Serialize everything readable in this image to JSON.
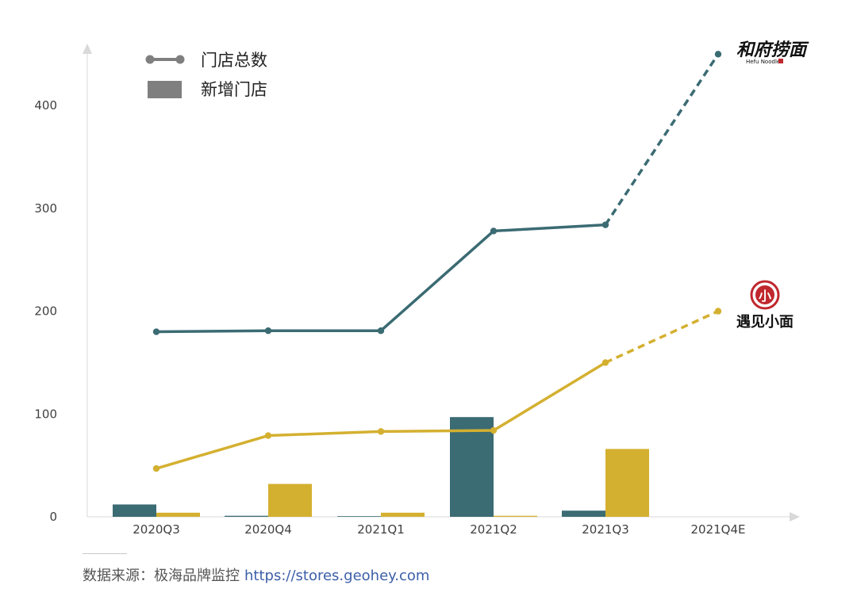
{
  "chart_data": {
    "type": "bar+line",
    "title": "",
    "xlabel": "",
    "ylabel": "",
    "ylim": [
      0,
      460
    ],
    "yticks": [
      0,
      100,
      200,
      300,
      400
    ],
    "categories": [
      "2020Q3",
      "2020Q4",
      "2021Q1",
      "2021Q2",
      "2021Q3",
      "2021Q4E"
    ],
    "legend": {
      "placement": "top-left",
      "line_label": "门店总数",
      "bar_label": "新增门店",
      "line_color": "#7f7f7f",
      "bar_color": "#7f7f7f"
    },
    "series": [
      {
        "brand": "和府捞面",
        "color": "#3b6b73",
        "bars": [
          12,
          1,
          0,
          97,
          6,
          null
        ],
        "line": [
          180,
          181,
          181,
          278,
          284,
          450
        ],
        "projected_from_index": 4
      },
      {
        "brand": "遇见小面",
        "color": "#d4b030",
        "bars": [
          4,
          32,
          4,
          1,
          66,
          null
        ],
        "line": [
          47,
          79,
          83,
          84,
          150,
          200
        ],
        "projected_from_index": 4
      }
    ]
  },
  "brands": {
    "hefu": {
      "name": "和府捞面",
      "sub": "Hefu Noodle"
    },
    "yujian": {
      "name": "遇见小面",
      "badge": "小"
    }
  },
  "source": {
    "label": "数据来源：极海品牌监控",
    "url": "https://stores.geohey.com"
  }
}
